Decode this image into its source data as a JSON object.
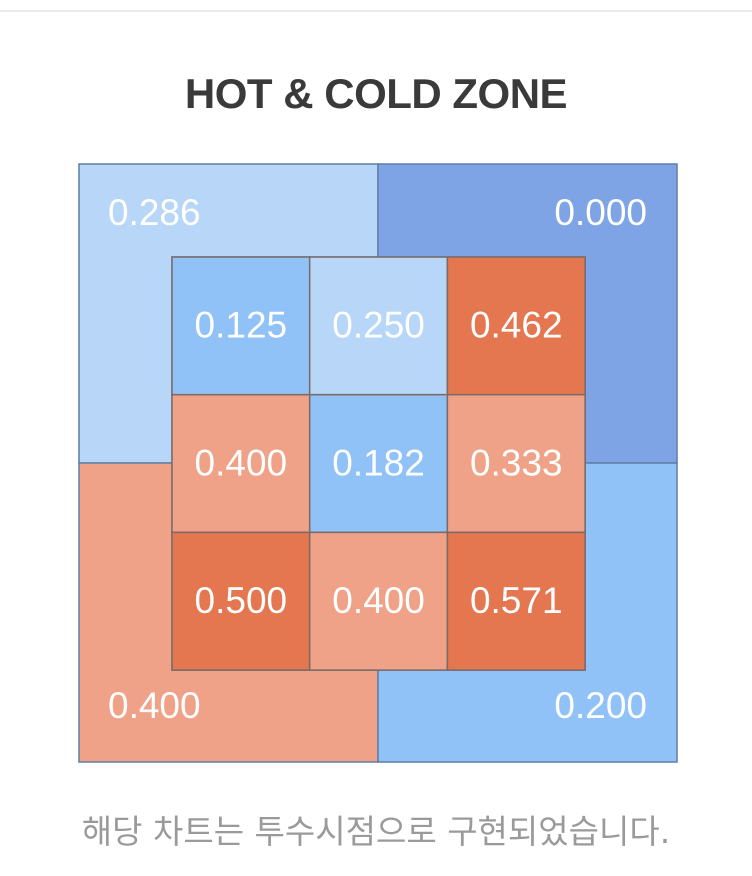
{
  "header": {
    "title": "HOT & COLD ZONE"
  },
  "footer": {
    "note": "해당 차트는 투수시점으로 구현되었습니다."
  },
  "colors": {
    "cold_light": "#b7d6f8",
    "cold_mid": "#90c1f7",
    "cold_dark": "#7ea4e6",
    "hot_light": "#efa287",
    "hot_dark": "#e47650"
  },
  "chart_data": {
    "type": "heatmap",
    "title": "HOT & COLD ZONE",
    "outer_zones": {
      "top_left": {
        "label": "0.286",
        "value": 0.286,
        "color": "#b7d6f8"
      },
      "top_right": {
        "label": "0.000",
        "value": 0.0,
        "color": "#7ea4e6"
      },
      "bottom_left": {
        "label": "0.400",
        "value": 0.4,
        "color": "#efa287"
      },
      "bottom_right": {
        "label": "0.200",
        "value": 0.2,
        "color": "#90c1f7"
      }
    },
    "inner_grid": [
      [
        {
          "label": "0.125",
          "value": 0.125,
          "color": "#90c1f7"
        },
        {
          "label": "0.250",
          "value": 0.25,
          "color": "#b7d6f8"
        },
        {
          "label": "0.462",
          "value": 0.462,
          "color": "#e47650"
        }
      ],
      [
        {
          "label": "0.400",
          "value": 0.4,
          "color": "#efa287"
        },
        {
          "label": "0.182",
          "value": 0.182,
          "color": "#90c1f7"
        },
        {
          "label": "0.333",
          "value": 0.333,
          "color": "#efa287"
        }
      ],
      [
        {
          "label": "0.500",
          "value": 0.5,
          "color": "#e47650"
        },
        {
          "label": "0.400",
          "value": 0.4,
          "color": "#efa287"
        },
        {
          "label": "0.571",
          "value": 0.571,
          "color": "#e47650"
        }
      ]
    ]
  }
}
